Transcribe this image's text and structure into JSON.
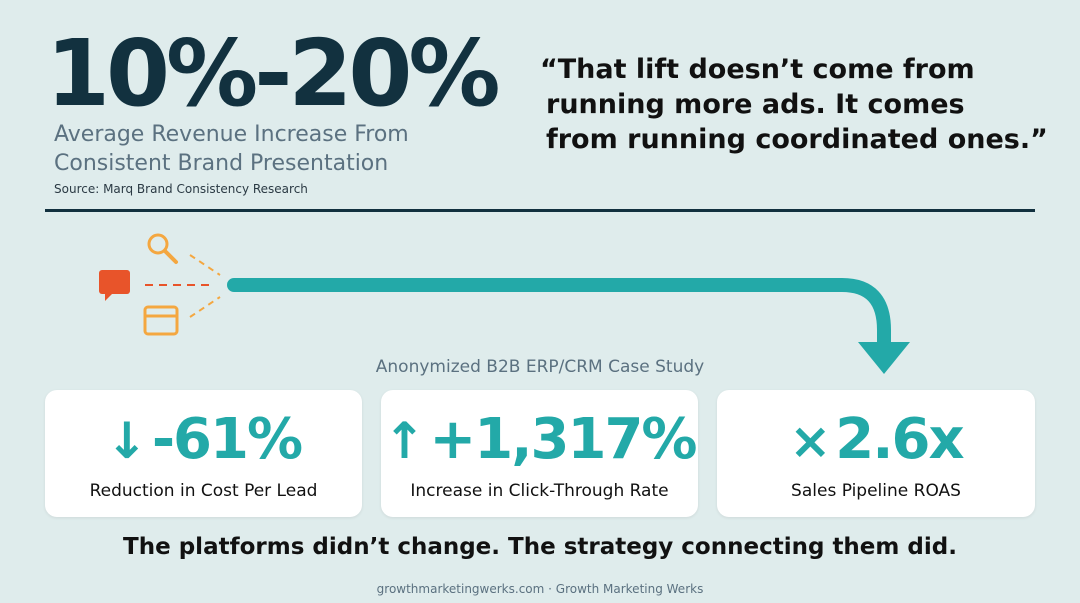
{
  "stat": {
    "value": "10%-20%",
    "description_line1": "Average Revenue Increase From",
    "description_line2": "Consistent Brand Presentation",
    "source": "Source: Marq Brand Consistency Research"
  },
  "quote": {
    "line1": "“That lift doesn’t come from",
    "line2": "running more ads. It comes",
    "line3": "from running coordinated ones.”"
  },
  "flow_icons": [
    "search-icon",
    "chat-bubble-icon",
    "browser-window-icon"
  ],
  "case_study": {
    "label": "Anonymized B2B ERP/CRM Case Study",
    "cards": [
      {
        "symbol": "↓",
        "value": "-61%",
        "label": "Reduction in Cost Per Lead"
      },
      {
        "symbol": "↑",
        "value": "+1,317%",
        "label": "Increase in Click-Through Rate"
      },
      {
        "symbol": "×",
        "value": "2.6x",
        "label": "Sales Pipeline ROAS"
      }
    ]
  },
  "tagline": "The platforms didn’t change. The strategy connecting them did.",
  "footer": "growthmarketingwerks.com · Growth Marketing Werks",
  "colors": {
    "background": "#dfecec",
    "navy": "#12313f",
    "teal": "#23a9a8",
    "orange_light": "#f4a740",
    "orange_red": "#e8542a"
  }
}
